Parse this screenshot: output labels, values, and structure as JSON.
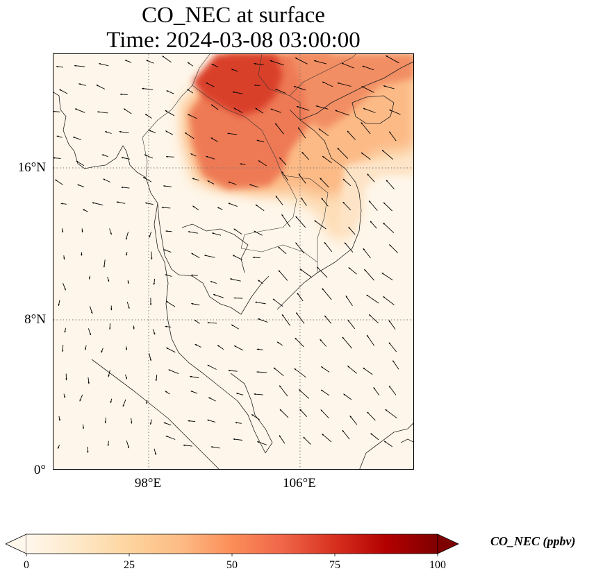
{
  "title": {
    "line1": "CO_NEC at surface",
    "line2": "Time: 2024-03-08 03:00:00"
  },
  "map": {
    "lon_range": [
      93,
      112
    ],
    "lat_range": [
      0,
      22
    ],
    "lat_ticks": [
      "16°N",
      "8°N",
      "0°"
    ],
    "lon_ticks": [
      "98°E",
      "106°E"
    ],
    "gridlines": "dotted gray",
    "plume_region": "northern Thailand, Laos, northern Vietnam, Gulf of Tonkin",
    "max_concentration_ppbv": 75,
    "wind_vectors": "black arrows, predominantly blowing west/southwest"
  },
  "colorbar": {
    "label": "CO_NEC (ppbv)",
    "ticks": [
      "0",
      "25",
      "50",
      "75",
      "100"
    ],
    "min": 0,
    "max": 100,
    "colormap": "OrRd",
    "extend": "both",
    "colors": [
      "#fff7ec",
      "#fee8c8",
      "#fdd49e",
      "#fdbb84",
      "#fc8d59",
      "#ef6548",
      "#d7301f",
      "#b30000",
      "#7f0000"
    ]
  }
}
